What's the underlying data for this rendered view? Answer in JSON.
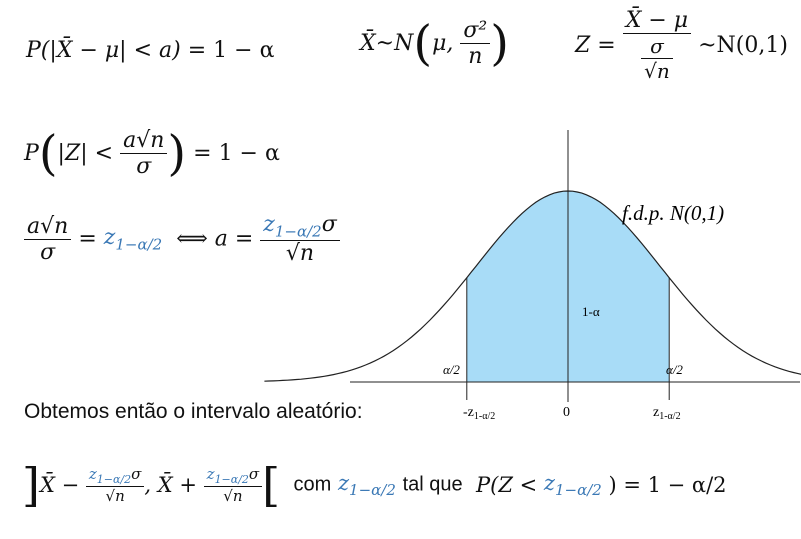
{
  "formulas": {
    "prob_interval": {
      "lhs": "P(|X̄ − μ| < a)",
      "rhs": "= 1 − α"
    },
    "xbar_dist": {
      "lhs": "X̄~N",
      "mu": "μ,",
      "num": "σ²",
      "den": "n"
    },
    "z_def": {
      "lhs": "Z =",
      "num": "X̄ − μ",
      "den_top": "σ",
      "den_bot": "√n",
      "rhs": "~N(0,1)"
    },
    "prob_z": {
      "lhs": "P",
      "inner": "|Z| <",
      "num": "a√n",
      "den": "σ",
      "rhs": "= 1 − α"
    },
    "equiv": {
      "num": "a√n",
      "den": "σ",
      "eq": "=",
      "z": "z",
      "zsub": "1−α/2",
      "iff": "⟺ a =",
      "rnum_z": "z",
      "rnum_sub": "1−α/2",
      "rnum_s": "σ",
      "rden": "√n"
    },
    "interval_text": "Obtemos então o intervalo aleatório:",
    "final": {
      "xbar1": "X̄ −",
      "xbar2": ", X̄ +",
      "z": "z",
      "zsub": "1−α/2",
      "s": "σ",
      "rootn": "√n",
      "com": "com",
      "talque": "tal que",
      "prob_lhs": "P(Z <",
      "prob_rhs": ") = 1 − α/2"
    }
  },
  "chart_data": {
    "type": "area",
    "title": "f.d.p. N(0,1)",
    "title_fdp": "f.d.p.",
    "title_dist": "N(0,1)",
    "center_label": "1-α",
    "left_tail_label": "α/2",
    "right_tail_label": "α/2",
    "tick_left": "-z",
    "tick_left_sub": "1-α/2",
    "tick_center": "0",
    "tick_right": "z",
    "tick_right_sub": "1-α/2",
    "x_range": [
      -3.3,
      3.3
    ],
    "z_critical": 1.1,
    "fill_color": "#a8dcf7",
    "line_color": "#222222"
  }
}
